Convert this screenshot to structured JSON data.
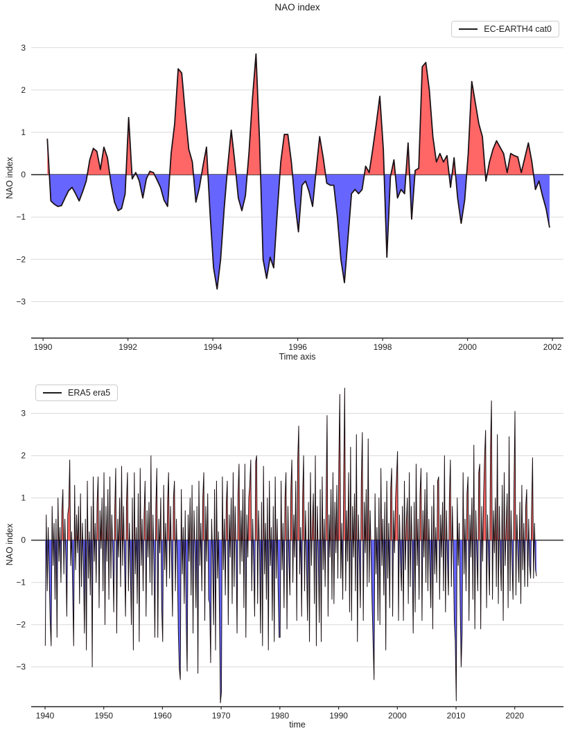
{
  "figure": {
    "title": "NAO index"
  },
  "chart_data": [
    {
      "type": "area",
      "title": "NAO index",
      "xlabel": "Time axis",
      "ylabel": "NAO index",
      "series_name": "EC-EARTH4 cat0",
      "legend_position": "upper-right",
      "grid": "horizontal",
      "xlim": [
        1989.72,
        2002.26
      ],
      "ylim": [
        -3.86,
        3.7
      ],
      "xticks": [
        1990,
        1992,
        1994,
        1996,
        1998,
        2000,
        2002
      ],
      "xtick_labels": [
        "1990",
        "1992",
        "1994",
        "1996",
        "1998",
        "2000",
        "2002"
      ],
      "yticks": [
        3,
        2,
        1,
        0,
        -1,
        -2,
        -3
      ],
      "ytick_labels": [
        "3",
        "2",
        "1",
        "0",
        "−1",
        "−2",
        "−3"
      ],
      "x_start": 1990.1,
      "x_step_years": 0.083333,
      "line_width": 1.8,
      "colors": {
        "positive_fill": "#ff6666",
        "negative_fill": "#6666ff",
        "line": "#1b1116",
        "grid": "#d9d9d9",
        "zero_line": "#3d3d3d",
        "spine": "#262626",
        "text": "#1f1f1f"
      },
      "values": [
        0.85,
        -0.62,
        -0.7,
        -0.75,
        -0.73,
        -0.55,
        -0.38,
        -0.3,
        -0.45,
        -0.62,
        -0.4,
        -0.15,
        0.35,
        0.62,
        0.55,
        0.12,
        0.65,
        0.4,
        -0.2,
        -0.65,
        -0.85,
        -0.8,
        -0.45,
        1.35,
        -0.1,
        0.05,
        -0.15,
        -0.55,
        -0.1,
        0.08,
        0.05,
        -0.12,
        -0.3,
        -0.6,
        -0.75,
        0.5,
        1.2,
        2.5,
        2.4,
        1.45,
        0.6,
        0.3,
        -0.65,
        -0.3,
        0.2,
        0.65,
        -0.9,
        -2.2,
        -2.7,
        -2.0,
        -0.8,
        0.2,
        1.05,
        0.3,
        -0.55,
        -0.85,
        -0.5,
        0.5,
        1.8,
        2.85,
        0.8,
        -2.0,
        -2.45,
        -1.95,
        -2.2,
        -0.9,
        0.3,
        0.95,
        0.95,
        0.3,
        -0.65,
        -1.35,
        -0.25,
        -0.15,
        -0.4,
        -0.75,
        0.1,
        0.9,
        0.4,
        -0.2,
        -0.25,
        -0.25,
        -1.0,
        -2.0,
        -2.55,
        -1.5,
        -0.45,
        -0.35,
        -0.45,
        -0.35,
        0.2,
        0.05,
        0.6,
        1.2,
        1.85,
        0.6,
        -1.95,
        -0.05,
        0.35,
        -0.55,
        -0.35,
        -0.45,
        0.75,
        -1.05,
        0.1,
        0.15,
        2.55,
        2.65,
        2.0,
        0.9,
        0.3,
        0.5,
        0.3,
        0.45,
        -0.3,
        0.4,
        -0.55,
        -1.15,
        -0.6,
        0.5,
        2.2,
        1.7,
        1.2,
        0.9,
        -0.15,
        0.3,
        0.6,
        0.8,
        0.65,
        0.5,
        0.05,
        0.5,
        0.45,
        0.42,
        0.05,
        0.4,
        0.75,
        0.3,
        -0.35,
        -0.15,
        -0.5,
        -0.8,
        -1.25
      ]
    },
    {
      "type": "area",
      "title": "",
      "xlabel": "time",
      "ylabel": "NAO index",
      "series_name": "ERA5 era5",
      "legend_position": "upper-left",
      "grid": "horizontal",
      "xlim": [
        1937.64,
        2028.3
      ],
      "ylim": [
        -3.94,
        3.75
      ],
      "xticks": [
        1940,
        1950,
        1960,
        1970,
        1980,
        1990,
        2000,
        2010,
        2020
      ],
      "xtick_labels": [
        "1940",
        "1950",
        "1960",
        "1970",
        "1980",
        "1990",
        "2000",
        "2010",
        "2020"
      ],
      "yticks": [
        3,
        2,
        1,
        0,
        -1,
        -2,
        -3
      ],
      "ytick_labels": [
        "3",
        "2",
        "1",
        "0",
        "−1",
        "−2",
        "−3"
      ],
      "x_start": 1940.04,
      "x_step_years": 0.166667,
      "line_width": 1.0,
      "colors": {
        "positive_fill": "#ff6666",
        "negative_fill": "#6666ff",
        "line": "#170c10",
        "grid": "#d9d9d9",
        "zero_line": "#3d3d3d",
        "spine": "#262626",
        "text": "#1f1f1f"
      },
      "values": [
        -2.5,
        0.6,
        -1.2,
        0.3,
        -0.8,
        -1.9,
        -2.5,
        0.8,
        -0.6,
        0.4,
        -1.4,
        0.5,
        -2.3,
        1.0,
        -0.5,
        0.3,
        -1.0,
        0.7,
        1.2,
        -0.8,
        0.5,
        -0.4,
        -1.8,
        0.6,
        0.8,
        1.9,
        -0.6,
        0.2,
        -1.2,
        -2.5,
        1.3,
        -0.7,
        0.6,
        -0.3,
        0.8,
        -1.5,
        1.1,
        -1.1,
        0.4,
        -0.6,
        -2.2,
        0.5,
        -2.6,
        1.4,
        -0.9,
        0.2,
        -1.3,
        0.8,
        -3.0,
        1.5,
        -0.5,
        0.4,
        -1.0,
        0.9,
        1.5,
        -1.6,
        0.7,
        -0.2,
        1.0,
        -1.2,
        1.6,
        -2.0,
        0.8,
        -0.5,
        1.2,
        -1.4,
        1.5,
        -0.9,
        0.6,
        -0.3,
        -1.7,
        0.7,
        1.7,
        -2.2,
        0.5,
        -0.4,
        1.0,
        -1.1,
        1.75,
        -0.6,
        0.8,
        -0.5,
        -1.8,
        0.9,
        1.6,
        -1.2,
        0.4,
        -0.7,
        -2.0,
        1.0,
        -2.6,
        1.6,
        -0.8,
        0.3,
        -1.5,
        1.1,
        -2.4,
        1.7,
        -0.6,
        0.5,
        -1.2,
        0.6,
        1.4,
        -1.8,
        0.7,
        -0.4,
        0.9,
        -1.0,
        2.0,
        -1.3,
        0.6,
        -0.5,
        -2.3,
        0.8,
        1.7,
        -2.3,
        0.5,
        -0.3,
        1.0,
        -1.6,
        -2.4,
        1.3,
        -0.7,
        0.4,
        -1.1,
        0.9,
        1.6,
        -0.9,
        0.8,
        -0.4,
        -1.8,
        1.0,
        1.4,
        -1.2,
        0.5,
        -0.6,
        -2.2,
        -3.05,
        -3.3,
        1.2,
        -0.8,
        0.3,
        -1.5,
        0.7,
        -1.9,
        -3.1,
        0.6,
        -0.5,
        1.0,
        -1.3,
        1.3,
        -2.2,
        0.7,
        -0.3,
        -1.6,
        0.8,
        -3.15,
        1.4,
        -0.6,
        0.4,
        -1.2,
        1.0,
        1.6,
        -1.9,
        0.8,
        -0.5,
        1.1,
        -1.4,
        -1.5,
        -2.9,
        0.5,
        -0.4,
        -2.0,
        1.2,
        -2.6,
        1.4,
        -0.9,
        0.2,
        -1.8,
        -3.85,
        -3.6,
        1.5,
        -0.7,
        0.5,
        -1.3,
        0.9,
        1.4,
        -2.0,
        0.6,
        -0.4,
        1.0,
        -1.5,
        1.6,
        -1.1,
        0.8,
        -0.3,
        -2.2,
        1.1,
        1.8,
        -0.8,
        0.7,
        -0.5,
        1.2,
        -1.6,
        1.8,
        -2.3,
        0.6,
        -0.4,
        1.0,
        1.3,
        1.9,
        -1.2,
        0.5,
        -0.6,
        -1.8,
        1.85,
        2.0,
        -1.5,
        0.7,
        -0.3,
        -2.2,
        0.9,
        -2.5,
        1.75,
        -0.8,
        0.4,
        -1.4,
        1.0,
        -2.6,
        1.4,
        -0.6,
        0.3,
        -1.9,
        0.8,
        -2.4,
        1.5,
        -0.9,
        0.5,
        -1.2,
        -2.3,
        -2.3,
        1.4,
        -0.7,
        0.4,
        -1.6,
        1.0,
        1.6,
        -2.1,
        0.8,
        -0.5,
        -1.3,
        1.2,
        1.9,
        -1.0,
        0.6,
        -0.4,
        1.4,
        -1.9,
        1.9,
        2.7,
        -0.8,
        0.3,
        -1.8,
        1.0,
        2.0,
        -1.2,
        0.7,
        -0.5,
        -1.9,
        0.9,
        -2.4,
        1.6,
        -0.6,
        0.4,
        1.1,
        -1.5,
        2.0,
        -2.5,
        0.8,
        -0.3,
        -1.95,
        1.2,
        -2.4,
        1.5,
        -0.7,
        0.5,
        -1.1,
        1.0,
        2.95,
        -1.8,
        0.6,
        -0.4,
        1.2,
        -1.4,
        1.6,
        -1.5,
        0.9,
        -0.3,
        1.3,
        -0.9,
        1.8,
        3.45,
        -0.9,
        0.4,
        -1.4,
        1.5,
        3.6,
        -1.2,
        0.7,
        -0.5,
        1.6,
        -1.7,
        2.2,
        -1.9,
        0.8,
        -0.4,
        1.1,
        -1.2,
        2.5,
        -2.4,
        0.6,
        -0.5,
        -1.6,
        1.4,
        2.55,
        -1.9,
        0.9,
        -0.3,
        1.2,
        -1.1,
        2.4,
        -1.0,
        0.7,
        -0.4,
        -1.5,
        -2.4,
        -3.3,
        1.1,
        -0.8,
        0.3,
        -1.9,
        1.0,
        -2.0,
        1.7,
        -0.6,
        0.5,
        -1.3,
        0.9,
        -2.6,
        1.4,
        -0.9,
        0.4,
        -1.6,
        1.2,
        1.7,
        -1.8,
        0.7,
        -0.3,
        1.0,
        1.5,
        2.1,
        -1.9,
        0.6,
        -0.5,
        -1.2,
        0.8,
        -1.9,
        1.4,
        -0.7,
        0.4,
        1.0,
        -1.5,
        1.6,
        -1.1,
        0.8,
        -0.3,
        -2.2,
        0.9,
        -1.7,
        1.8,
        -0.6,
        0.5,
        -1.4,
        1.1,
        1.7,
        -1.9,
        0.7,
        -0.4,
        1.2,
        -1.0,
        1.6,
        -1.2,
        0.5,
        -0.6,
        -1.6,
        0.8,
        -2.1,
        1.3,
        -0.8,
        0.3,
        -1.0,
        1.4,
        1.5,
        -1.4,
        0.6,
        -0.4,
        0.9,
        -1.2,
        2.0,
        -1.7,
        0.7,
        -0.5,
        -1.3,
        1.0,
        1.9,
        -1.1,
        0.8,
        -0.3,
        -1.9,
        -2.4,
        -3.8,
        1.0,
        -0.6,
        0.4,
        -1.5,
        -3.0,
        -2.2,
        1.6,
        -0.8,
        0.5,
        -1.2,
        1.1,
        1.5,
        -1.9,
        0.6,
        -0.4,
        1.0,
        -1.4,
        2.25,
        -2.1,
        0.7,
        -0.3,
        -1.2,
        1.6,
        1.8,
        -2.1,
        0.8,
        -0.5,
        1.1,
        2.0,
        2.6,
        -1.6,
        0.6,
        -0.4,
        -1.3,
        2.2,
        3.3,
        -1.4,
        0.7,
        -0.3,
        1.0,
        -1.1,
        2.5,
        -1.5,
        0.8,
        -0.4,
        -1.2,
        1.3,
        -1.9,
        1.6,
        -0.6,
        0.3,
        1.1,
        -1.6,
        2.45,
        -1.2,
        0.7,
        -0.5,
        -1.4,
        1.2,
        3.05,
        -1.3,
        0.6,
        -0.3,
        -1.0,
        0.9,
        -1.5,
        1.3,
        -0.7,
        0.4,
        -1.1,
        0.8,
        1.2,
        -1.1,
        0.5,
        -0.6,
        -0.9,
        0.7,
        1.95,
        -0.9,
        0.4,
        -0.7,
        -0.85
      ]
    }
  ]
}
